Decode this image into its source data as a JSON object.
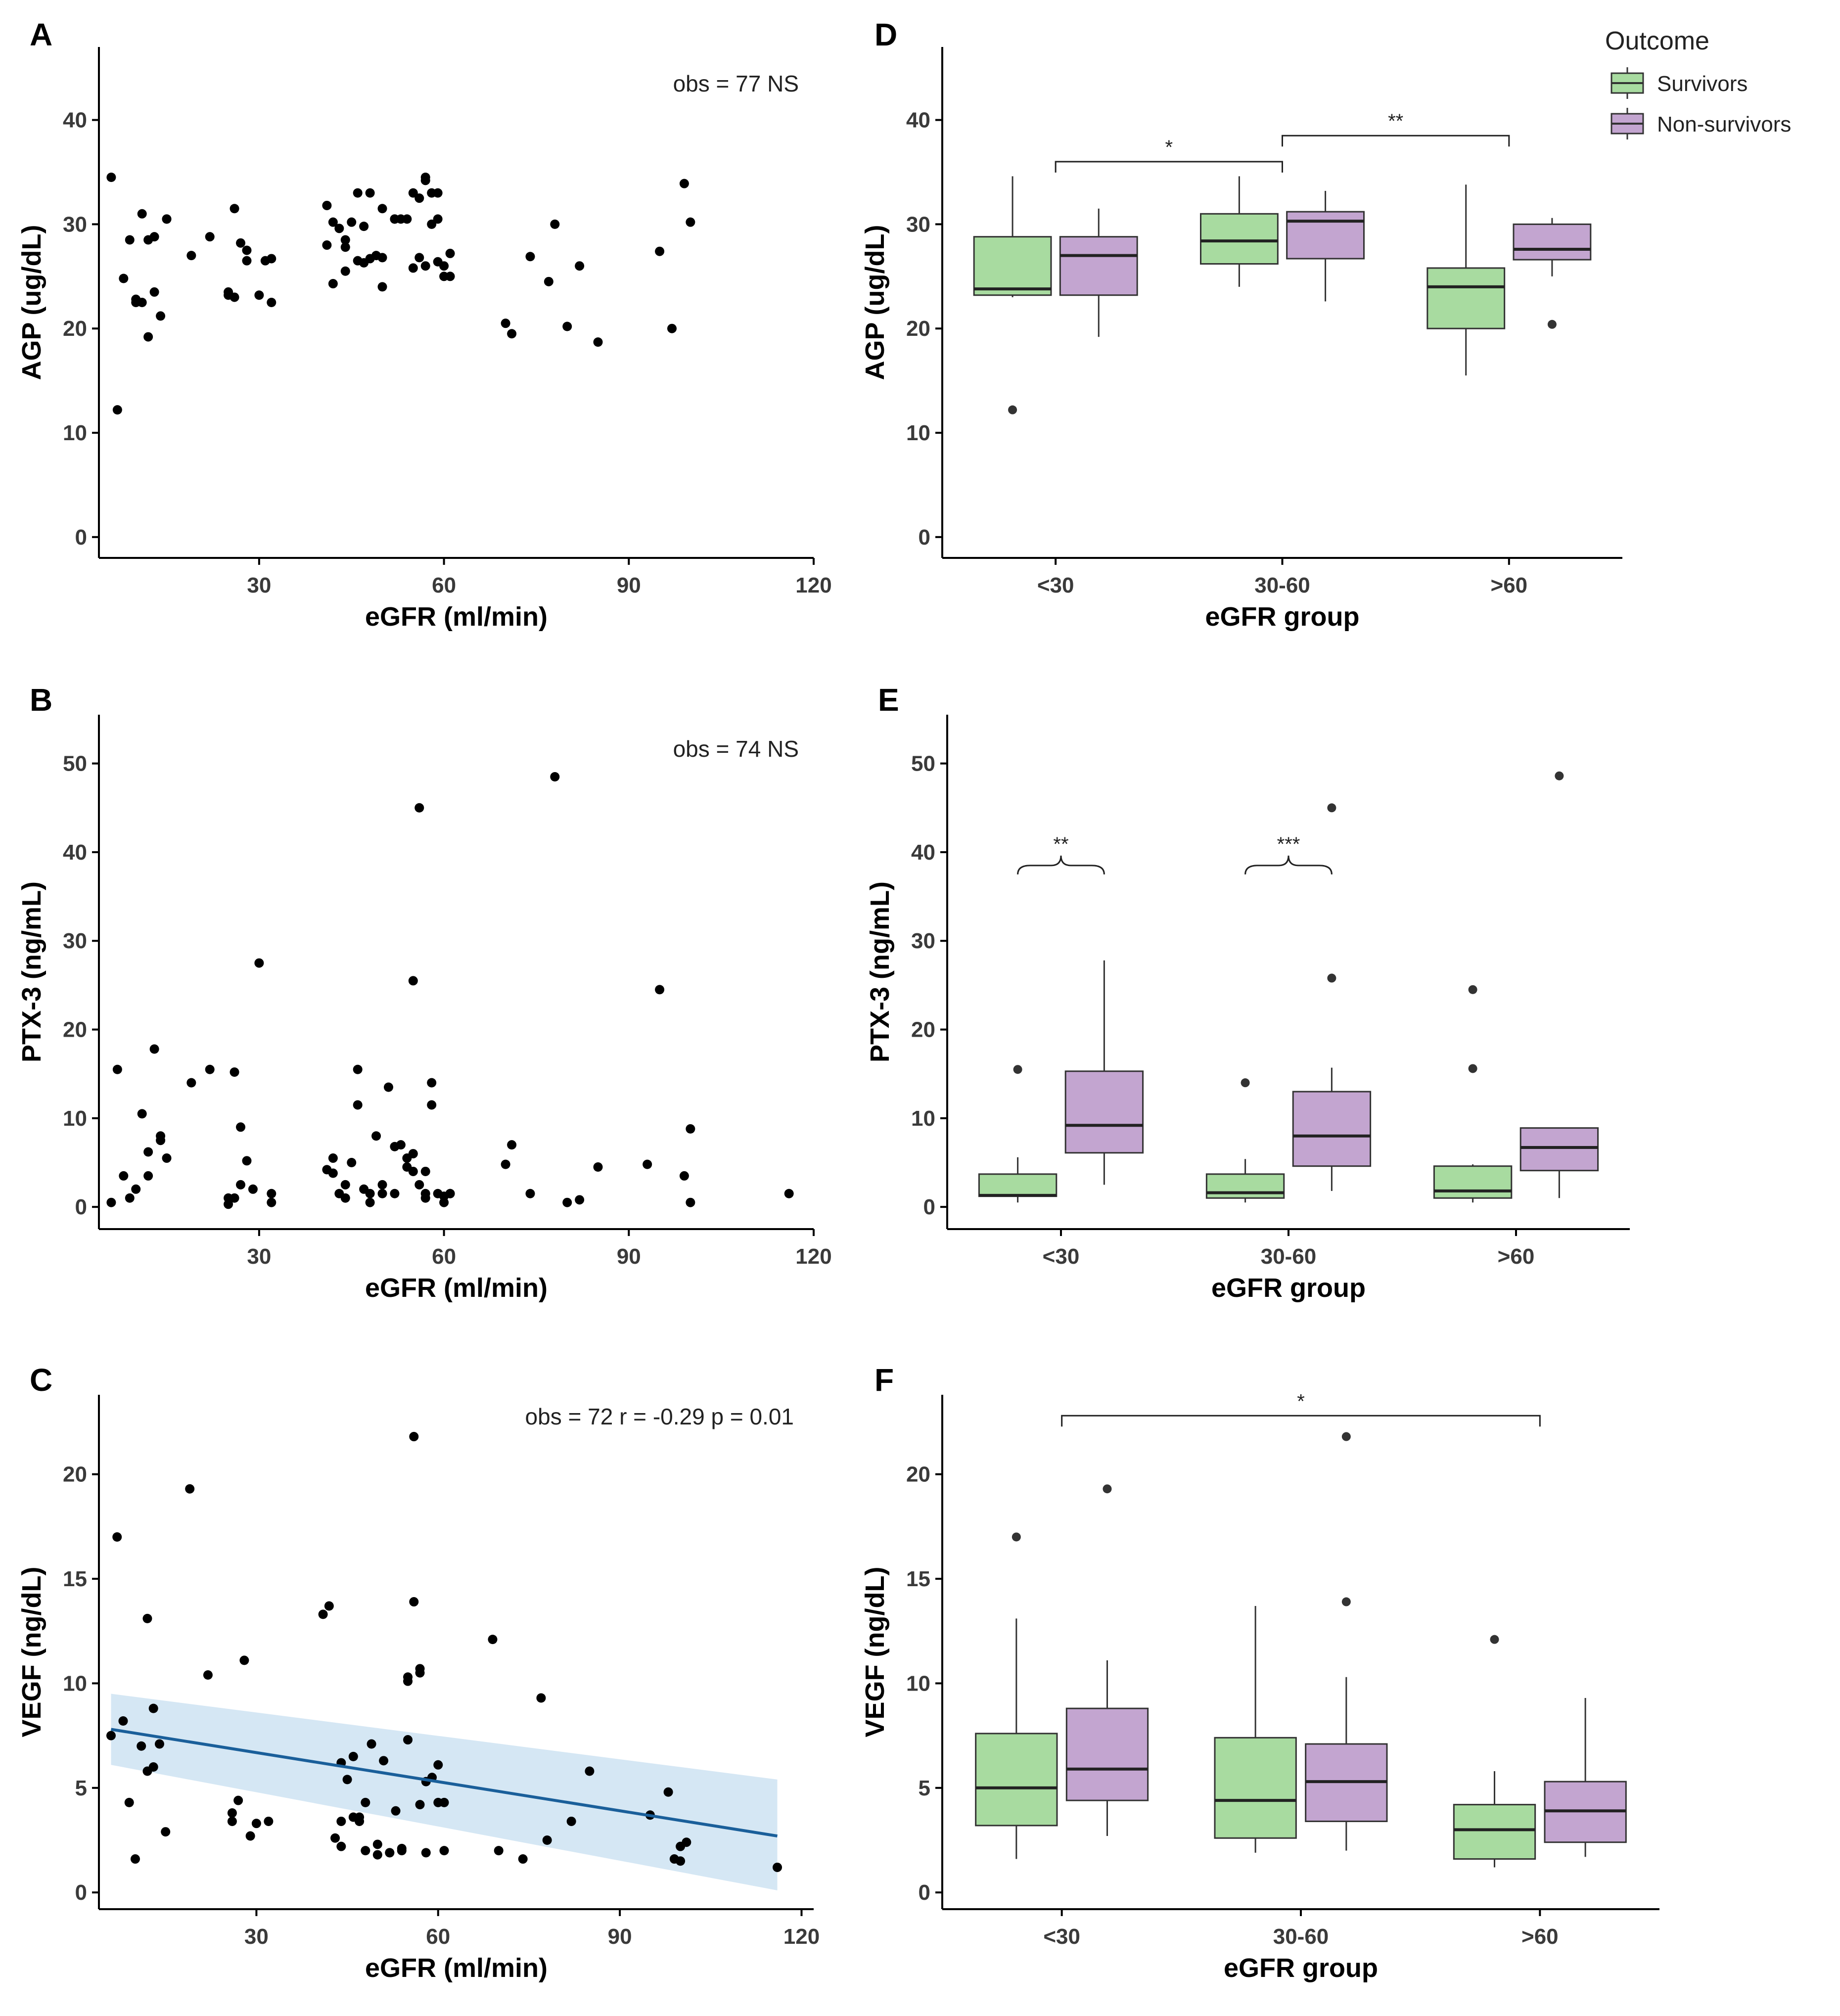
{
  "colors": {
    "survivors": "#a8dba0",
    "non_survivors": "#c3a5d0",
    "regression_line": "#1a5f9a",
    "confidence_band": "#c7dff0",
    "points": "#000000"
  },
  "legend": {
    "title": "Outcome",
    "items": [
      "Survivors",
      "Non-survivors"
    ]
  },
  "chart_data": [
    {
      "panel": "A",
      "type": "scatter",
      "xlabel": "eGFR (ml/min)",
      "ylabel": "AGP (ug/dL)",
      "annotation": "obs = 77   NS",
      "xlim": [
        4,
        120
      ],
      "ylim": [
        -2,
        47
      ],
      "xticks": [
        30,
        60,
        90,
        120
      ],
      "yticks": [
        0,
        10,
        20,
        30,
        40
      ],
      "x": [
        6,
        7,
        8,
        9,
        10,
        11,
        12,
        13,
        14,
        15,
        15,
        13,
        11,
        10,
        12,
        19,
        22,
        25,
        26,
        27,
        28,
        30,
        32,
        32,
        26,
        28,
        31,
        25,
        41,
        42,
        43,
        44,
        45,
        46,
        47,
        48,
        49,
        50,
        52,
        53,
        54,
        55,
        56,
        57,
        58,
        59,
        60,
        61,
        41,
        42,
        44,
        46,
        48,
        50,
        52,
        55,
        56,
        57,
        58,
        59,
        60,
        61,
        44,
        47,
        50,
        57,
        59,
        70,
        71,
        74,
        77,
        78,
        80,
        82,
        85,
        95,
        97,
        99,
        100
      ],
      "y": [
        34.5,
        12.2,
        24.8,
        28.5,
        22.5,
        31,
        19.2,
        28.8,
        21.2,
        30.5,
        30.5,
        23.5,
        22.5,
        22.8,
        28.5,
        27,
        28.8,
        23.5,
        31.5,
        28.2,
        27.5,
        23.2,
        26.7,
        22.5,
        23,
        26.5,
        26.5,
        23.2,
        31.8,
        30.2,
        29.6,
        28.5,
        30.2,
        33,
        29.8,
        33,
        27,
        31.5,
        30.5,
        30.5,
        30.5,
        33,
        32.5,
        34.5,
        33,
        30.5,
        26,
        27.2,
        28,
        24.3,
        25.5,
        26.5,
        26.7,
        26.8,
        30.5,
        25.8,
        26.8,
        26,
        30,
        26.4,
        25,
        25,
        27.8,
        26.3,
        24,
        34.2,
        33,
        20.5,
        19.5,
        26.9,
        24.5,
        30,
        20.2,
        26,
        18.7,
        27.4,
        20,
        33.9,
        30.2
      ],
      "regression": null
    },
    {
      "panel": "B",
      "type": "scatter",
      "xlabel": "eGFR (ml/min)",
      "ylabel": "PTX-3 (ng/mL)",
      "annotation": "obs = 74   NS",
      "xlim": [
        4,
        120
      ],
      "ylim": [
        -2.5,
        55.5
      ],
      "xticks": [
        30,
        60,
        90,
        120
      ],
      "yticks": [
        0,
        10,
        20,
        30,
        40,
        50
      ],
      "x": [
        6,
        7,
        8,
        9,
        10,
        11,
        12,
        13,
        14,
        15,
        12,
        14,
        19,
        22,
        25,
        25,
        26,
        27,
        28,
        29,
        30,
        32,
        32,
        26,
        27,
        41,
        42,
        43,
        44,
        45,
        46,
        47,
        48,
        49,
        50,
        51,
        52,
        53,
        54,
        55,
        56,
        57,
        58,
        59,
        60,
        61,
        42,
        44,
        46,
        48,
        50,
        52,
        54,
        55,
        56,
        57,
        58,
        60,
        61,
        55,
        57,
        70,
        71,
        74,
        78,
        80,
        82,
        85,
        93,
        95,
        99,
        100,
        100,
        116
      ],
      "y": [
        0.5,
        15.5,
        3.5,
        1,
        2,
        10.5,
        3.5,
        17.8,
        8,
        5.5,
        6.2,
        7.5,
        14,
        15.5,
        0.3,
        1,
        15.2,
        9,
        5.2,
        2,
        27.5,
        0.5,
        1.5,
        1,
        2.5,
        4.2,
        3.8,
        1.5,
        2.5,
        5,
        15.5,
        2,
        0.5,
        8,
        2.5,
        13.5,
        6.8,
        7,
        5.5,
        4,
        2.5,
        1,
        14,
        1.5,
        1.2,
        1.5,
        5.5,
        1,
        11.5,
        1.5,
        1.5,
        1.5,
        4.5,
        25.5,
        45,
        1.5,
        11.5,
        0.5,
        1.5,
        6,
        4,
        4.8,
        7,
        1.5,
        48.5,
        0.5,
        0.8,
        4.5,
        4.8,
        24.5,
        3.5,
        8.8,
        0.5,
        1.5
      ],
      "regression": null
    },
    {
      "panel": "C",
      "type": "scatter",
      "xlabel": "eGFR (ml/min)",
      "ylabel": "VEGF (ng/dL)",
      "annotation": "obs = 72   r = -0.29   p = 0.01",
      "xlim": [
        4,
        122
      ],
      "ylim": [
        -0.8,
        23.8
      ],
      "xticks": [
        30,
        60,
        90,
        120
      ],
      "yticks": [
        0,
        5,
        10,
        15,
        20
      ],
      "x": [
        6,
        7,
        8,
        9,
        10,
        11,
        12,
        13,
        13,
        14,
        15,
        12,
        19,
        22,
        26,
        27,
        28,
        29,
        30,
        26,
        32,
        41,
        42,
        43,
        44,
        45,
        46,
        47,
        48,
        49,
        50,
        51,
        52,
        53,
        54,
        55,
        56,
        57,
        58,
        59,
        60,
        61,
        44,
        46,
        48,
        50,
        52,
        54,
        55,
        56,
        57,
        58,
        60,
        61,
        44,
        47,
        55,
        57,
        69,
        70,
        74,
        77,
        78,
        82,
        85,
        95,
        98,
        99,
        100,
        100,
        101,
        116
      ],
      "y": [
        7.5,
        17,
        8.2,
        4.3,
        1.6,
        7,
        5.8,
        6,
        8.8,
        7.1,
        2.9,
        13.1,
        19.3,
        10.4,
        3.4,
        4.4,
        11.1,
        2.7,
        3.3,
        3.8,
        3.4,
        13.3,
        13.7,
        2.6,
        2.2,
        5.4,
        6.5,
        3.6,
        2,
        7.1,
        1.8,
        6.3,
        1.9,
        3.9,
        2.1,
        10.3,
        13.9,
        10.7,
        1.9,
        5.5,
        6.1,
        4.3,
        3.4,
        3.6,
        4.3,
        2.3,
        1.9,
        2,
        7.3,
        21.8,
        10.5,
        5.3,
        4.3,
        2,
        6.2,
        3.4,
        10.1,
        4.2,
        12.1,
        2,
        1.6,
        9.3,
        2.5,
        3.4,
        5.8,
        3.7,
        4.8,
        1.6,
        1.5,
        2.2,
        2.4,
        1.2
      ],
      "regression": {
        "x": [
          6,
          116
        ],
        "y": [
          7.8,
          2.7
        ],
        "lower": [
          6.1,
          0.1
        ],
        "upper": [
          9.5,
          5.4
        ]
      }
    },
    {
      "panel": "D",
      "type": "box",
      "xlabel": "eGFR group",
      "ylabel": "AGP (ug/dL)",
      "categories": [
        "<30",
        "30-60",
        ">60"
      ],
      "ylim": [
        -2,
        47
      ],
      "yticks": [
        0,
        10,
        20,
        30,
        40
      ],
      "series": [
        {
          "name": "Survivors",
          "boxes": [
            {
              "min": 23,
              "q1": 23.2,
              "median": 23.8,
              "q3": 28.8,
              "max": 34.6,
              "outliers": [
                12.2
              ]
            },
            {
              "min": 24,
              "q1": 26.2,
              "median": 28.4,
              "q3": 31,
              "max": 34.6,
              "outliers": []
            },
            {
              "min": 15.5,
              "q1": 20,
              "median": 24,
              "q3": 25.8,
              "max": 33.8,
              "outliers": []
            }
          ]
        },
        {
          "name": "Non-survivors",
          "boxes": [
            {
              "min": 19.2,
              "q1": 23.2,
              "median": 27,
              "q3": 28.8,
              "max": 31.5,
              "outliers": []
            },
            {
              "min": 22.6,
              "q1": 26.7,
              "median": 30.3,
              "q3": 31.2,
              "max": 33.2,
              "outliers": []
            },
            {
              "min": 25,
              "q1": 26.6,
              "median": 27.6,
              "q3": 30,
              "max": 30.6,
              "outliers": [
                20.4
              ]
            }
          ]
        }
      ],
      "significance": [
        {
          "label": "*",
          "from": 0,
          "to": 1,
          "y": 36,
          "style": "bracket"
        },
        {
          "label": "**",
          "from": 1,
          "to": 2,
          "y": 38.5,
          "style": "bracket"
        }
      ]
    },
    {
      "panel": "E",
      "type": "box",
      "xlabel": "eGFR group",
      "ylabel": "PTX-3 (ng/mL)",
      "categories": [
        "<30",
        "30-60",
        ">60"
      ],
      "ylim": [
        -2.5,
        55.5
      ],
      "yticks": [
        0,
        10,
        20,
        30,
        40,
        50
      ],
      "series": [
        {
          "name": "Survivors",
          "boxes": [
            {
              "min": 0.5,
              "q1": 1.2,
              "median": 1.3,
              "q3": 3.7,
              "max": 5.6,
              "outliers": [
                15.5
              ]
            },
            {
              "min": 0.5,
              "q1": 1,
              "median": 1.6,
              "q3": 3.7,
              "max": 5.4,
              "outliers": [
                14
              ]
            },
            {
              "min": 0.5,
              "q1": 1,
              "median": 1.8,
              "q3": 4.6,
              "max": 4.8,
              "outliers": [
                24.5,
                15.6
              ]
            }
          ]
        },
        {
          "name": "Non-survivors",
          "boxes": [
            {
              "min": 2.5,
              "q1": 6.1,
              "median": 9.2,
              "q3": 15.3,
              "max": 27.8,
              "outliers": []
            },
            {
              "min": 1.8,
              "q1": 4.6,
              "median": 8,
              "q3": 13,
              "max": 15.7,
              "outliers": [
                45,
                25.8
              ]
            },
            {
              "min": 1,
              "q1": 4.1,
              "median": 6.7,
              "q3": 8.9,
              "max": 8.9,
              "outliers": [
                48.6
              ]
            }
          ]
        }
      ],
      "significance": [
        {
          "label": "**",
          "from": 0,
          "to": 0,
          "y": 38.5,
          "style": "brace"
        },
        {
          "label": "***",
          "from": 1,
          "to": 1,
          "y": 38.5,
          "style": "brace"
        }
      ]
    },
    {
      "panel": "F",
      "type": "box",
      "xlabel": "eGFR group",
      "ylabel": "VEGF (ng/dL)",
      "categories": [
        "<30",
        "30-60",
        ">60"
      ],
      "ylim": [
        -0.8,
        23.8
      ],
      "yticks": [
        0,
        5,
        10,
        15,
        20
      ],
      "series": [
        {
          "name": "Survivors",
          "boxes": [
            {
              "min": 1.6,
              "q1": 3.2,
              "median": 5,
              "q3": 7.6,
              "max": 13.1,
              "outliers": [
                17
              ]
            },
            {
              "min": 1.9,
              "q1": 2.6,
              "median": 4.4,
              "q3": 7.4,
              "max": 13.7,
              "outliers": []
            },
            {
              "min": 1.2,
              "q1": 1.6,
              "median": 3,
              "q3": 4.2,
              "max": 5.8,
              "outliers": [
                12.1
              ]
            }
          ]
        },
        {
          "name": "Non-survivors",
          "boxes": [
            {
              "min": 2.7,
              "q1": 4.4,
              "median": 5.9,
              "q3": 8.8,
              "max": 11.1,
              "outliers": [
                19.3
              ]
            },
            {
              "min": 2,
              "q1": 3.4,
              "median": 5.3,
              "q3": 7.1,
              "max": 10.3,
              "outliers": [
                21.8,
                13.9
              ]
            },
            {
              "min": 1.7,
              "q1": 2.4,
              "median": 3.9,
              "q3": 5.3,
              "max": 9.3,
              "outliers": []
            }
          ]
        }
      ],
      "significance": [
        {
          "label": "*",
          "from": 0,
          "to": 2,
          "y": 22.8,
          "style": "bracket"
        }
      ]
    }
  ]
}
